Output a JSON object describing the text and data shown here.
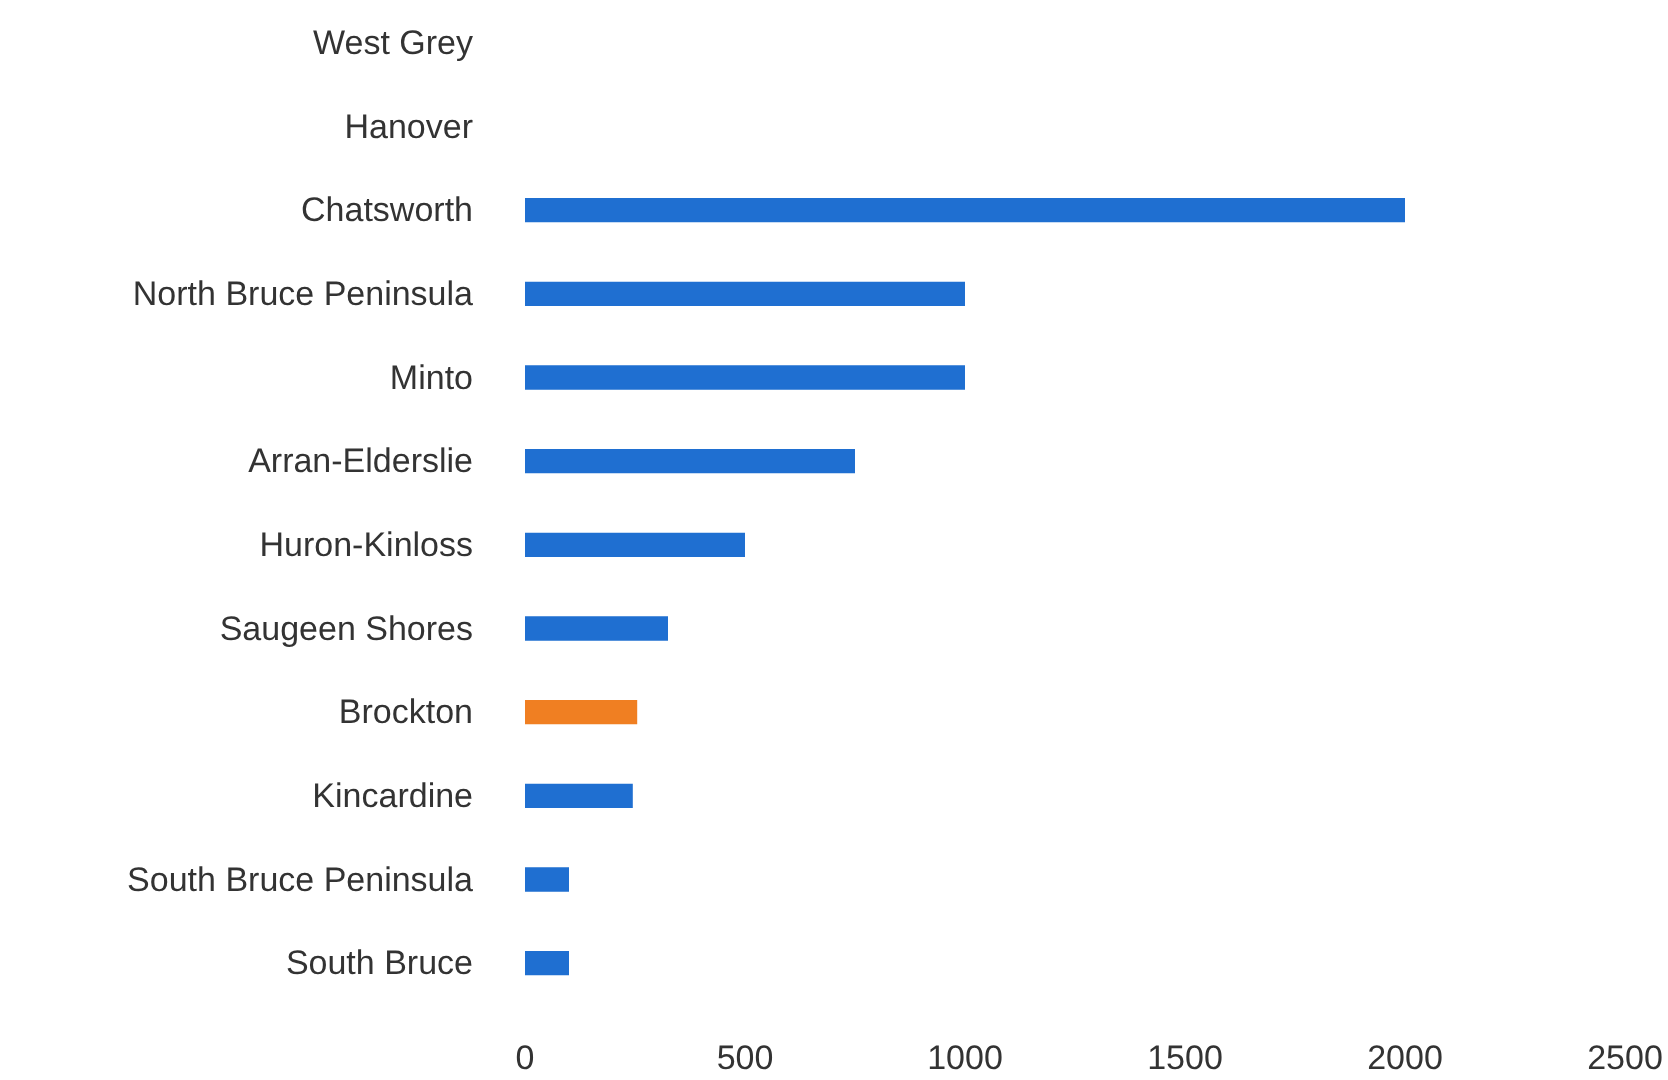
{
  "chart_data": {
    "type": "bar",
    "orientation": "horizontal",
    "categories": [
      "West Grey",
      "Hanover",
      "Chatsworth",
      "North Bruce Peninsula",
      "Minto",
      "Arran-Elderslie",
      "Huron-Kinloss",
      "Saugeen Shores",
      "Brockton",
      "Kincardine",
      "South Bruce Peninsula",
      "South Bruce"
    ],
    "values": [
      0,
      0,
      2000,
      1000,
      1000,
      750,
      500,
      325,
      255,
      245,
      100,
      100
    ],
    "colors": [
      "#1f6fd1",
      "#1f6fd1",
      "#1f6fd1",
      "#1f6fd1",
      "#1f6fd1",
      "#1f6fd1",
      "#1f6fd1",
      "#1f6fd1",
      "#f07f22",
      "#1f6fd1",
      "#1f6fd1",
      "#1f6fd1"
    ],
    "xlim": [
      0,
      2500
    ],
    "xticks": [
      0,
      500,
      1000,
      1500,
      2000,
      2500
    ],
    "grid": false
  }
}
